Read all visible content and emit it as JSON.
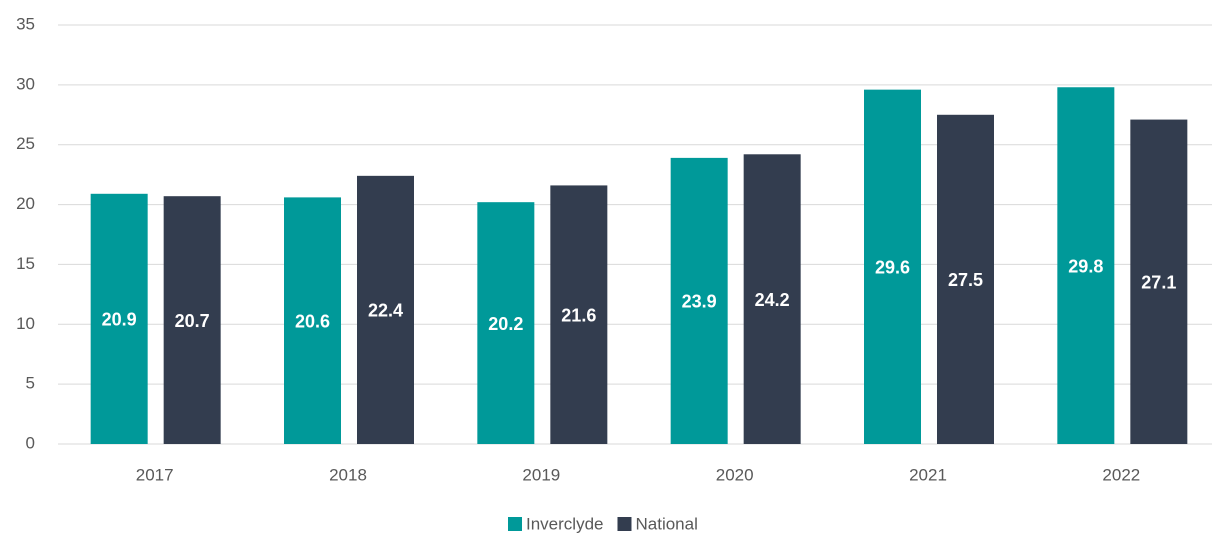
{
  "chart_data": {
    "type": "bar",
    "categories": [
      "2017",
      "2018",
      "2019",
      "2020",
      "2021",
      "2022"
    ],
    "series": [
      {
        "name": "Inverclyde",
        "color": "#009999",
        "values": [
          20.9,
          20.6,
          20.2,
          23.9,
          29.6,
          29.8
        ]
      },
      {
        "name": "National",
        "color": "#333d4f",
        "values": [
          20.7,
          22.4,
          21.6,
          24.2,
          27.5,
          27.1
        ]
      }
    ],
    "ylim": [
      0,
      35
    ],
    "yticks": [
      0,
      5,
      10,
      15,
      20,
      25,
      30,
      35
    ],
    "grid": true,
    "legend": "bottom"
  }
}
